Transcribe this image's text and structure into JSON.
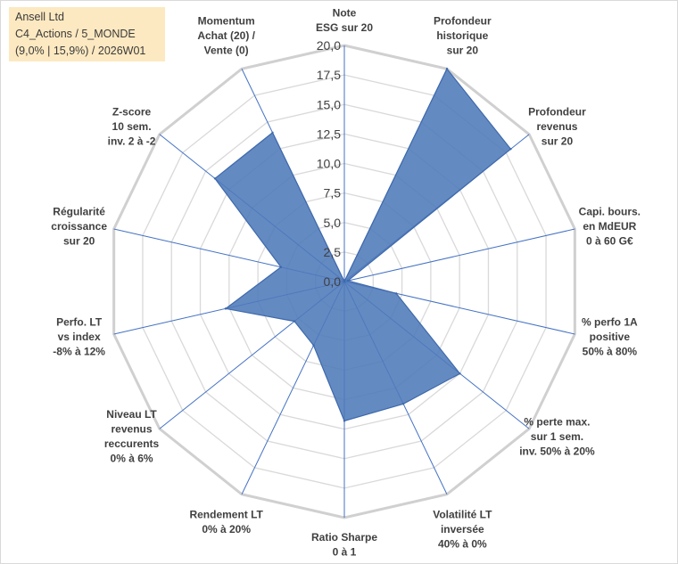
{
  "title": {
    "line1": "Ansell Ltd",
    "line2": "C4_Actions / 5_MONDE",
    "line3": "(9,0% | 15,9%) / 2026W01"
  },
  "colors": {
    "fill": "#4f7ab9",
    "stroke": "#3e69ab",
    "grid": "#d9d9d9",
    "spoke": "#4472c4",
    "title_bg": "#fde9c1"
  },
  "chart_data": {
    "type": "radar",
    "rmin": 0,
    "rmax": 20,
    "ticks": [
      "0,0",
      "2,5",
      "5,0",
      "7,5",
      "10,0",
      "12,5",
      "15,0",
      "17,5",
      "20,0"
    ],
    "axes": [
      {
        "label": [
          "Note",
          "ESG sur 20"
        ],
        "value": 0
      },
      {
        "label": [
          "Profondeur",
          "historique",
          "sur 20"
        ],
        "value": 20
      },
      {
        "label": [
          "Profondeur",
          "revenus",
          "sur 20"
        ],
        "value": 18
      },
      {
        "label": [
          "Capi. bours.",
          "en MdEUR",
          "0 à 60 G€"
        ],
        "value": 0.3
      },
      {
        "label": [
          "% perfo 1A",
          "positive",
          "50% à 80%"
        ],
        "value": 4.5
      },
      {
        "label": [
          "% perte max.",
          "sur 1 sem.",
          "inv. 50% à 20%"
        ],
        "value": 12.5
      },
      {
        "label": [
          "Volatilité LT",
          "inversée",
          "40% à 0%"
        ],
        "value": 11.5
      },
      {
        "label": [
          "Ratio Sharpe",
          "0 à 1"
        ],
        "value": 11.8
      },
      {
        "label": [
          "Rendement LT",
          "0% à 20%"
        ],
        "value": 6.0
      },
      {
        "label": [
          "Niveau LT",
          "revenus",
          "reccurents",
          "0% à 6%"
        ],
        "value": 5.4
      },
      {
        "label": [
          "Perfo. LT",
          "vs index",
          "-8% à 12%"
        ],
        "value": 10.3
      },
      {
        "label": [
          "Régularité",
          "croissance",
          "sur 20"
        ],
        "value": 5.5
      },
      {
        "label": [
          "Z-score",
          "10 sem.",
          "inv. 2 à -2"
        ],
        "value": 14.0
      },
      {
        "label": [
          "Momentum",
          "Achat (20) /",
          "Vente (0)"
        ],
        "value": 14.0
      }
    ]
  }
}
